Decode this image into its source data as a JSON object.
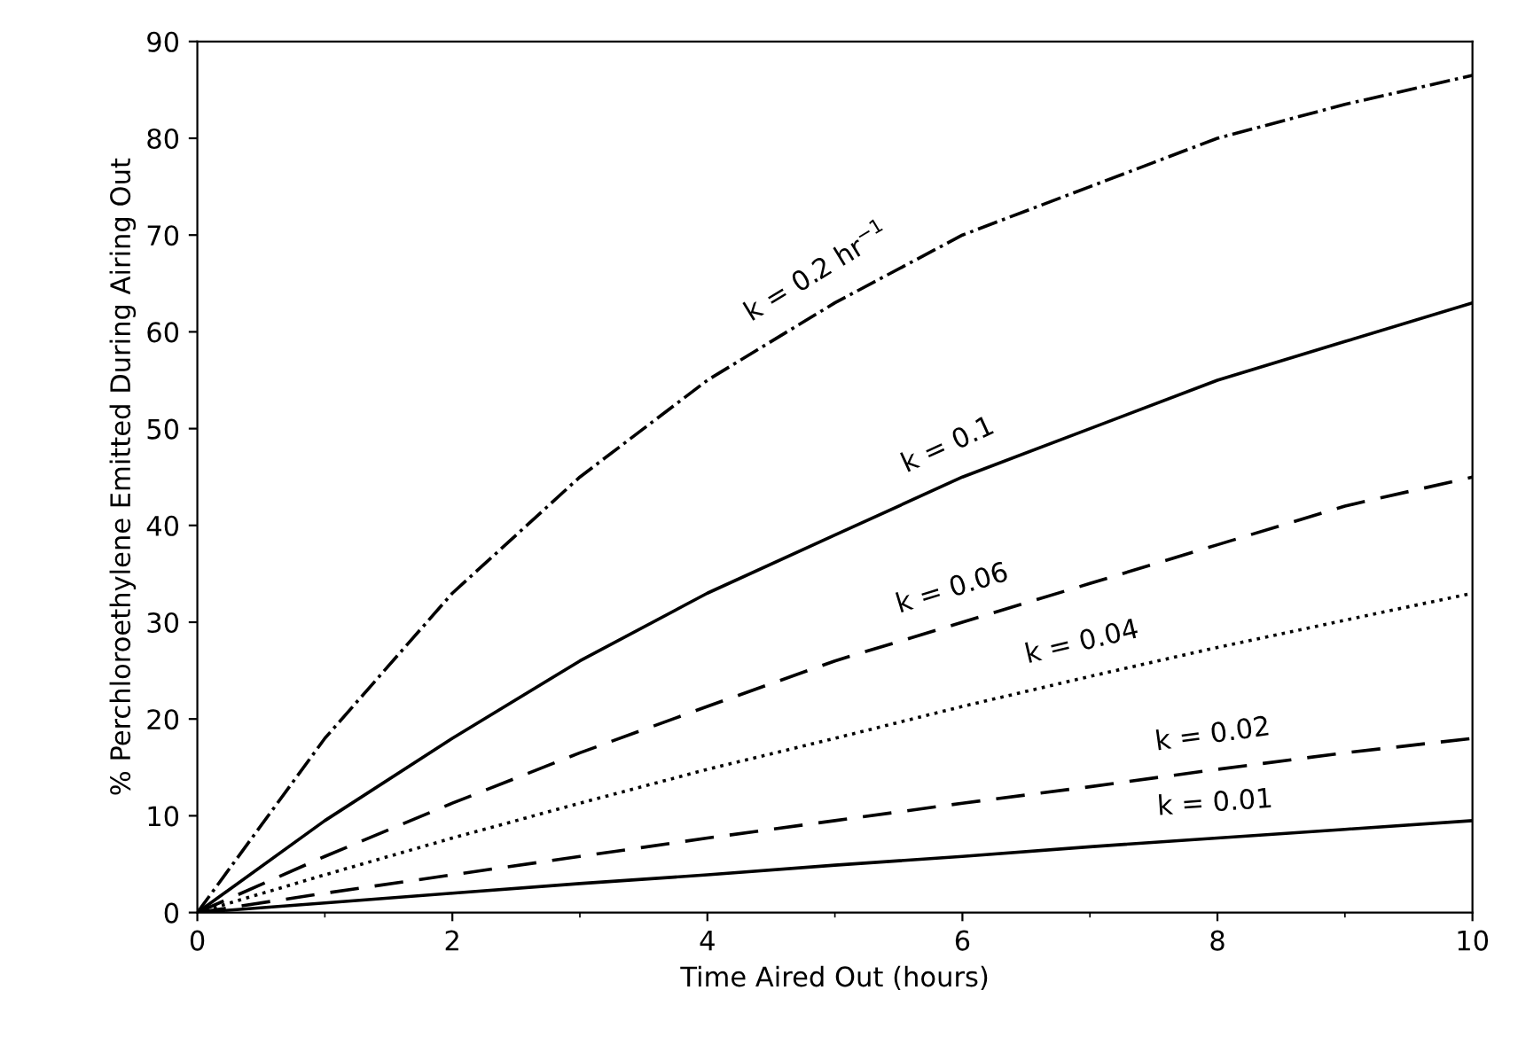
{
  "chart_data": {
    "type": "line",
    "xlabel": "Time Aired Out (hours)",
    "ylabel": "% Perchloroethylene Emitted During Airing Out",
    "x": [
      0,
      1,
      2,
      3,
      4,
      5,
      6,
      7,
      8,
      9,
      10
    ],
    "series": [
      {
        "color": "#000000",
        "line_style": "dashdot",
        "values": [
          0,
          18,
          33,
          45,
          55,
          63,
          70,
          75,
          80,
          83.5,
          86.5
        ]
      },
      {
        "color": "#000000",
        "line_style": "solid",
        "values": [
          0,
          9.5,
          18,
          26,
          33,
          39,
          45,
          50,
          55,
          59,
          63
        ]
      },
      {
        "color": "#000000",
        "line_style": "dashed",
        "values": [
          0,
          5.8,
          11.3,
          16.5,
          21.3,
          26,
          30,
          34,
          38,
          42,
          45
        ]
      },
      {
        "color": "#000000",
        "line_style": "dotted",
        "values": [
          0,
          3.9,
          7.7,
          11.3,
          14.8,
          18,
          21.3,
          24.4,
          27.4,
          30.2,
          33
        ]
      },
      {
        "color": "#000000",
        "line_style": "dashed",
        "values": [
          0,
          2,
          3.9,
          5.8,
          7.7,
          9.5,
          11.3,
          13,
          14.8,
          16.5,
          18
        ]
      },
      {
        "color": "#000000",
        "line_style": "solid",
        "values": [
          0,
          1,
          2,
          3,
          3.9,
          4.9,
          5.8,
          6.8,
          7.7,
          8.6,
          9.5
        ]
      }
    ],
    "annotations": [
      {
        "text": "k = 0.2 hr$^{−1}$",
        "x": 5,
        "y": 63
      },
      {
        "text": "k = 0.1",
        "x": 6,
        "y": 45
      },
      {
        "text": "k = 0.06",
        "x": 6,
        "y": 30
      },
      {
        "text": "k = 0.04",
        "x": 7,
        "y": 24.4
      },
      {
        "text": "k = 0.02",
        "x": 8,
        "y": 14.8
      },
      {
        "text": "k = 0.01",
        "x": 8,
        "y": 7.7
      }
    ],
    "xlim": [
      0,
      10
    ],
    "xticks": [
      0,
      2,
      4,
      6,
      8,
      10
    ],
    "ylim": [
      0,
      90
    ],
    "yticks": [
      0,
      10,
      20,
      30,
      40,
      50,
      60,
      70,
      80,
      90
    ],
    "grid": false,
    "legend": false,
    "marker": "none"
  }
}
